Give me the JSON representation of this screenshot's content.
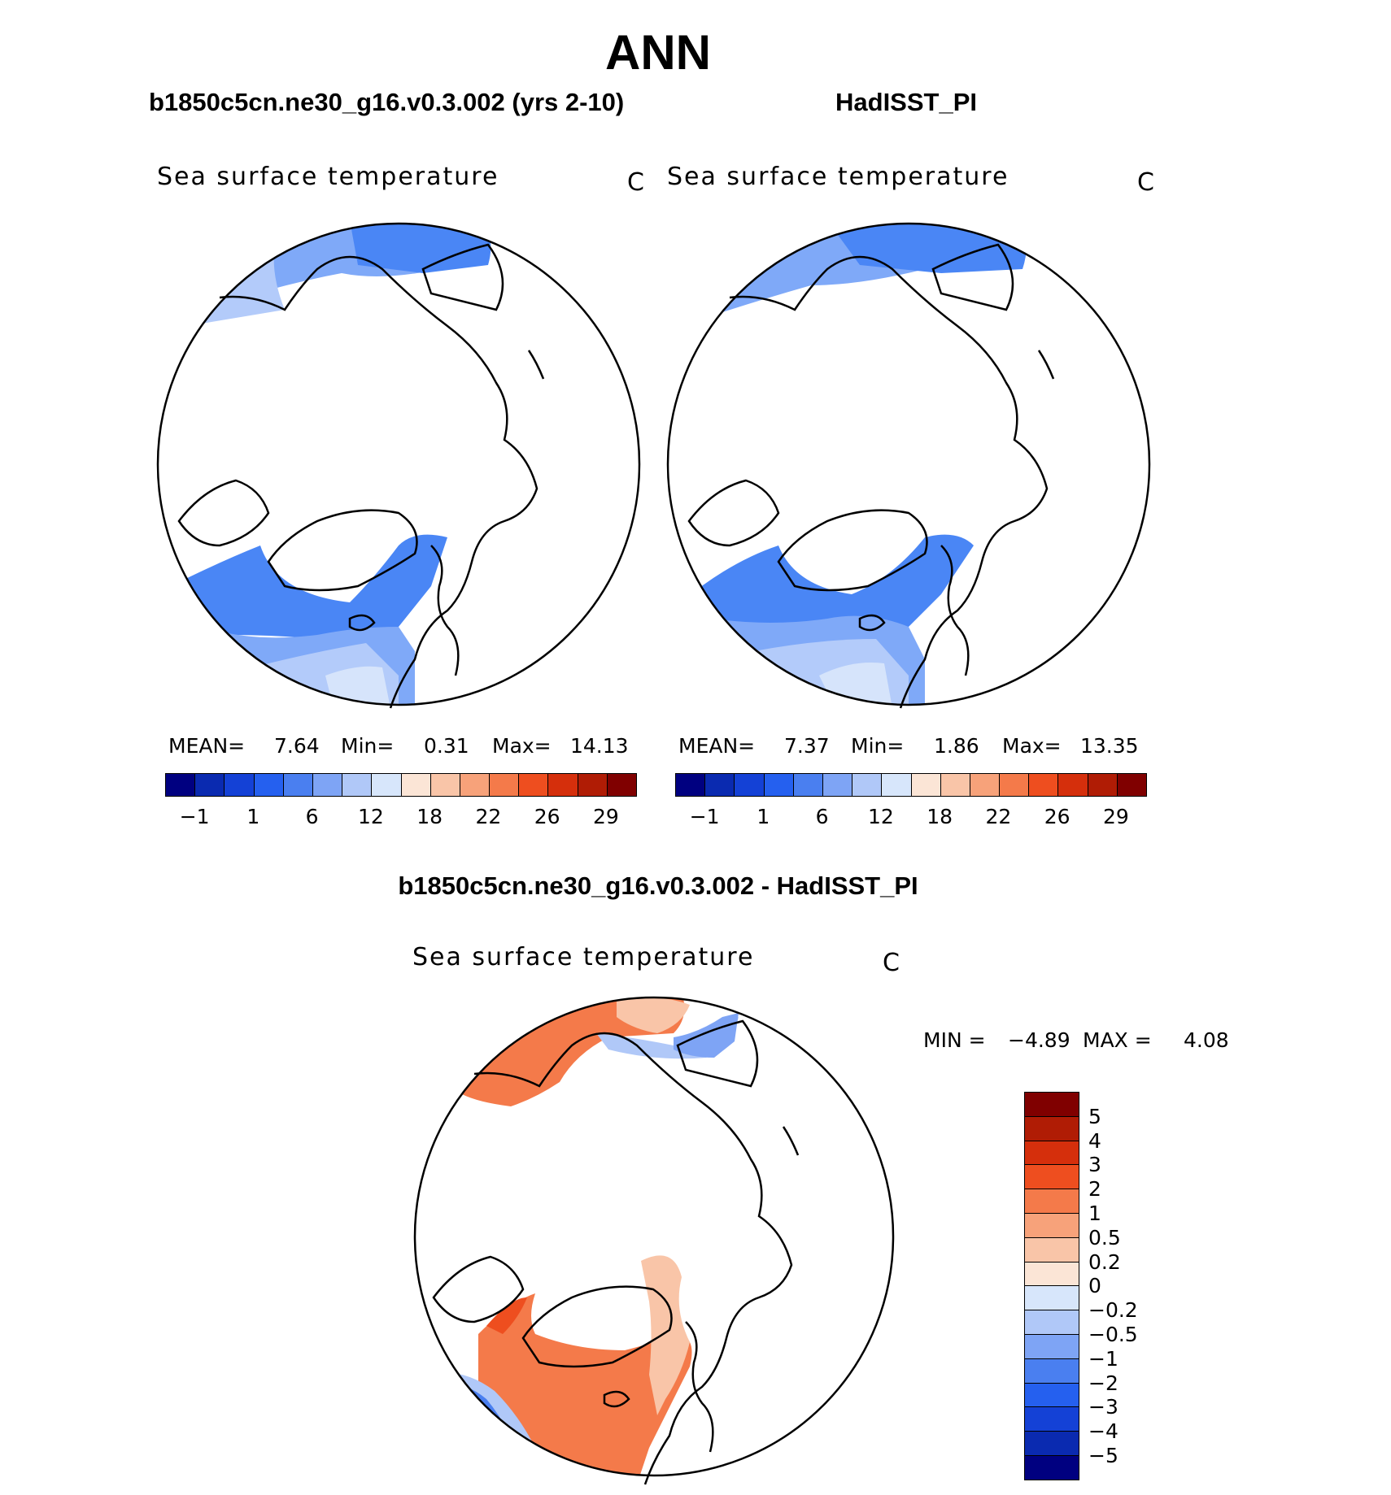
{
  "page_title": "ANN",
  "panels": [
    {
      "case_title": "b1850c5cn.ne30_g16.v0.3.002 (yrs 2-10)",
      "variable": "Sea surface temperature",
      "units": "C",
      "stats": {
        "mean_label": "MEAN=",
        "mean": "7.64",
        "min_label": "Min=",
        "min": "0.31",
        "max_label": "Max=",
        "max": "14.13"
      },
      "colorbar_labels": [
        "−1",
        "1",
        "6",
        "12",
        "18",
        "22",
        "26",
        "29"
      ],
      "fill_colors": [
        "#2f6ff0",
        "#4a86f5",
        "#7fa9f8",
        "#b3cbfa",
        "#d6e4fb"
      ]
    },
    {
      "case_title": "HadISST_PI",
      "variable": "Sea surface temperature",
      "units": "C",
      "stats": {
        "mean_label": "MEAN=",
        "mean": "7.37",
        "min_label": "Min=",
        "min": "1.86",
        "max_label": "Max=",
        "max": "13.35"
      },
      "colorbar_labels": [
        "−1",
        "1",
        "6",
        "12",
        "18",
        "22",
        "26",
        "29"
      ],
      "fill_colors": [
        "#2f6ff0",
        "#4a86f5",
        "#7fa9f8",
        "#b3cbfa",
        "#d6e4fb"
      ]
    }
  ],
  "abs_colorscale": [
    "#000080",
    "#0a2ab0",
    "#1441d6",
    "#2560ef",
    "#4a7ff0",
    "#7ea4f5",
    "#b0c8f8",
    "#d7e6fb",
    "#fbe5d6",
    "#f9c5a8",
    "#f7a27a",
    "#f47a4a",
    "#ee4e1f",
    "#d52f0c",
    "#b01c05",
    "#800000"
  ],
  "diff": {
    "title": "b1850c5cn.ne30_g16.v0.3.002 - HadISST_PI",
    "variable": "Sea surface temperature",
    "units": "C",
    "min_label": "MIN =",
    "min": "−4.89",
    "max_label": "MAX =",
    "max": "4.08",
    "levels": [
      "5",
      "4",
      "3",
      "2",
      "1",
      "0.5",
      "0.2",
      "0",
      "−0.2",
      "−0.5",
      "−1",
      "−2",
      "−3",
      "−4",
      "−5"
    ],
    "colorscale": [
      "#800000",
      "#b01c05",
      "#d52f0c",
      "#ee4e1f",
      "#f47a4a",
      "#f7a27a",
      "#f9c5a8",
      "#fbe5d6",
      "#d7e6fb",
      "#b0c8f8",
      "#7ea4f5",
      "#4a7ff0",
      "#2560ef",
      "#1441d6",
      "#0a2ab0",
      "#000080"
    ]
  }
}
